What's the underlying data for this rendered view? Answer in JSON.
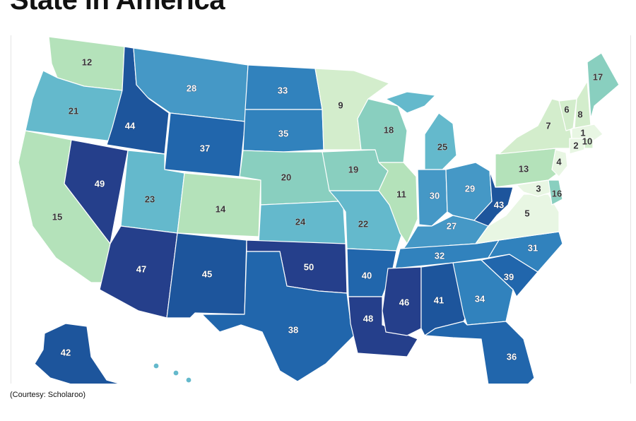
{
  "title": "State in America",
  "caption": "(Courtesy: Scholaroo)",
  "palette": [
    "#e8f6e3",
    "#d3edcc",
    "#b4e2ba",
    "#89cfbf",
    "#64b9cc",
    "#4598c6",
    "#3182bd",
    "#2166ac",
    "#1d559c",
    "#253f8b"
  ],
  "states": [
    {
      "code": "WA",
      "rank": 12
    },
    {
      "code": "OR",
      "rank": 21
    },
    {
      "code": "CA",
      "rank": 15
    },
    {
      "code": "ID",
      "rank": 44
    },
    {
      "code": "NV",
      "rank": 49
    },
    {
      "code": "MT",
      "rank": 28
    },
    {
      "code": "WY",
      "rank": 37
    },
    {
      "code": "UT",
      "rank": 23
    },
    {
      "code": "AZ",
      "rank": 47
    },
    {
      "code": "CO",
      "rank": 14
    },
    {
      "code": "NM",
      "rank": 45
    },
    {
      "code": "ND",
      "rank": 33
    },
    {
      "code": "SD",
      "rank": 35
    },
    {
      "code": "NE",
      "rank": 20
    },
    {
      "code": "KS",
      "rank": 24
    },
    {
      "code": "OK",
      "rank": 50
    },
    {
      "code": "TX",
      "rank": 38
    },
    {
      "code": "MN",
      "rank": 9
    },
    {
      "code": "IA",
      "rank": 19
    },
    {
      "code": "MO",
      "rank": 22
    },
    {
      "code": "AR",
      "rank": 40
    },
    {
      "code": "LA",
      "rank": 48
    },
    {
      "code": "WI",
      "rank": 18
    },
    {
      "code": "IL",
      "rank": 11
    },
    {
      "code": "MI",
      "rank": 25
    },
    {
      "code": "IN",
      "rank": 30
    },
    {
      "code": "OH",
      "rank": 29
    },
    {
      "code": "KY",
      "rank": 27
    },
    {
      "code": "TN",
      "rank": 32
    },
    {
      "code": "MS",
      "rank": 46
    },
    {
      "code": "AL",
      "rank": 41
    },
    {
      "code": "GA",
      "rank": 34
    },
    {
      "code": "FL",
      "rank": 36
    },
    {
      "code": "SC",
      "rank": 39
    },
    {
      "code": "NC",
      "rank": 31
    },
    {
      "code": "VA",
      "rank": 5
    },
    {
      "code": "WV",
      "rank": 43
    },
    {
      "code": "PA",
      "rank": 13
    },
    {
      "code": "NY",
      "rank": 7
    },
    {
      "code": "VT",
      "rank": 6
    },
    {
      "code": "NH",
      "rank": 8
    },
    {
      "code": "ME",
      "rank": 17
    },
    {
      "code": "MA",
      "rank": 1
    },
    {
      "code": "RI",
      "rank": 10
    },
    {
      "code": "CT",
      "rank": 2
    },
    {
      "code": "NJ",
      "rank": 4
    },
    {
      "code": "DE",
      "rank": 16
    },
    {
      "code": "MD",
      "rank": 3
    },
    {
      "code": "AK",
      "rank": 42
    },
    {
      "code": "HI",
      "rank": null
    }
  ]
}
